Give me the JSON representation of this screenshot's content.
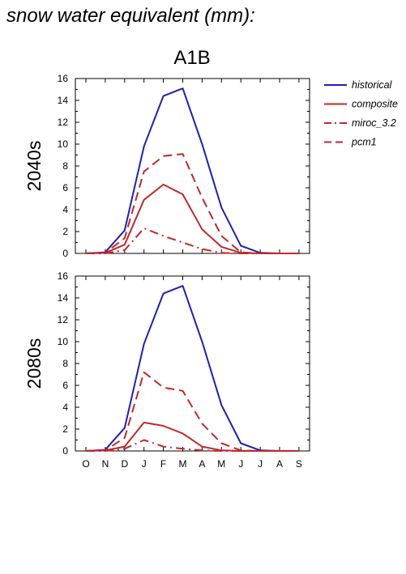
{
  "title": "snow water equivalent (mm):",
  "subtitle": "A1B",
  "colors": {
    "historical": "#1f1fb4",
    "scenario": "#c0282b",
    "axis": "#000000"
  },
  "legend": [
    {
      "name": "historical",
      "style": "solid",
      "color": "#1f1fb4"
    },
    {
      "name": "composite",
      "style": "solid",
      "color": "#c0282b"
    },
    {
      "name": "miroc_3.2",
      "style": "dashdot",
      "color": "#c0282b"
    },
    {
      "name": "pcm1",
      "style": "dashed",
      "color": "#c0282b"
    }
  ],
  "chart_data": [
    {
      "type": "line",
      "panel_label": "2040s",
      "categories": [
        "O",
        "N",
        "D",
        "J",
        "F",
        "M",
        "A",
        "M",
        "J",
        "J",
        "A",
        "S"
      ],
      "ylim": [
        0,
        16
      ],
      "yticks": [
        0,
        2,
        4,
        6,
        8,
        10,
        12,
        14,
        16
      ],
      "grid": false,
      "legend_position": "right",
      "series": [
        {
          "name": "historical",
          "style": "solid",
          "values": [
            0,
            0.1,
            2.1,
            9.8,
            14.4,
            15.1,
            10.0,
            4.2,
            0.7,
            0.05,
            0,
            0
          ]
        },
        {
          "name": "composite",
          "style": "solid",
          "values": [
            0,
            0.05,
            0.8,
            4.9,
            6.3,
            5.4,
            2.2,
            0.6,
            0.05,
            0,
            0,
            0
          ]
        },
        {
          "name": "miroc_3.2",
          "style": "dashdot",
          "values": [
            0,
            0,
            0.3,
            2.3,
            1.6,
            1.0,
            0.4,
            0.05,
            0,
            0,
            0,
            0
          ]
        },
        {
          "name": "pcm1",
          "style": "dashed",
          "values": [
            0,
            0.05,
            1.4,
            7.5,
            8.9,
            9.1,
            5.1,
            1.6,
            0.1,
            0,
            0,
            0
          ]
        }
      ]
    },
    {
      "type": "line",
      "panel_label": "2080s",
      "categories": [
        "O",
        "N",
        "D",
        "J",
        "F",
        "M",
        "A",
        "M",
        "J",
        "J",
        "A",
        "S"
      ],
      "ylim": [
        0,
        16
      ],
      "yticks": [
        0,
        2,
        4,
        6,
        8,
        10,
        12,
        14,
        16
      ],
      "grid": false,
      "series": [
        {
          "name": "historical",
          "style": "solid",
          "values": [
            0,
            0.1,
            2.1,
            9.8,
            14.4,
            15.1,
            10.0,
            4.2,
            0.7,
            0.05,
            0,
            0
          ]
        },
        {
          "name": "composite",
          "style": "solid",
          "values": [
            0,
            0.05,
            0.4,
            2.6,
            2.3,
            1.6,
            0.4,
            0.05,
            0,
            0,
            0,
            0
          ]
        },
        {
          "name": "miroc_3.2",
          "style": "dashdot",
          "values": [
            0,
            0,
            0.2,
            1.0,
            0.4,
            0.2,
            0.05,
            0,
            0,
            0,
            0,
            0
          ]
        },
        {
          "name": "pcm1",
          "style": "dashed",
          "values": [
            0,
            0.05,
            1.2,
            7.2,
            5.8,
            5.5,
            2.5,
            0.7,
            0.05,
            0,
            0,
            0
          ]
        }
      ]
    }
  ]
}
